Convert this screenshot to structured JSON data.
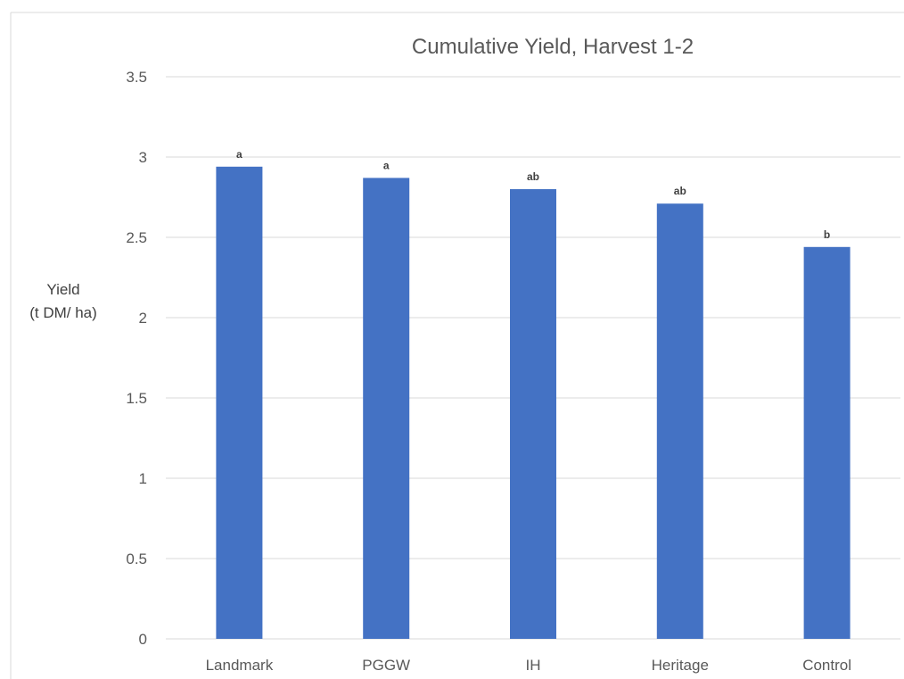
{
  "chart_data": {
    "type": "bar",
    "title": "Cumulative Yield, Harvest 1-2",
    "xlabel": "",
    "ylabel": [
      "Yield",
      "(t DM/ ha)"
    ],
    "categories": [
      "Landmark",
      "PGGW",
      "IH",
      "Heritage",
      "Control"
    ],
    "values": [
      2.94,
      2.87,
      2.8,
      2.71,
      2.44
    ],
    "data_labels": [
      "a",
      "a",
      "ab",
      "ab",
      "b"
    ],
    "ylim": [
      0,
      3.5
    ],
    "yticks": [
      "0",
      "0.5",
      "1",
      "1.5",
      "2",
      "2.5",
      "3",
      "3.5"
    ],
    "grid": true,
    "legend": "none",
    "bar_color": "#4472c4"
  }
}
